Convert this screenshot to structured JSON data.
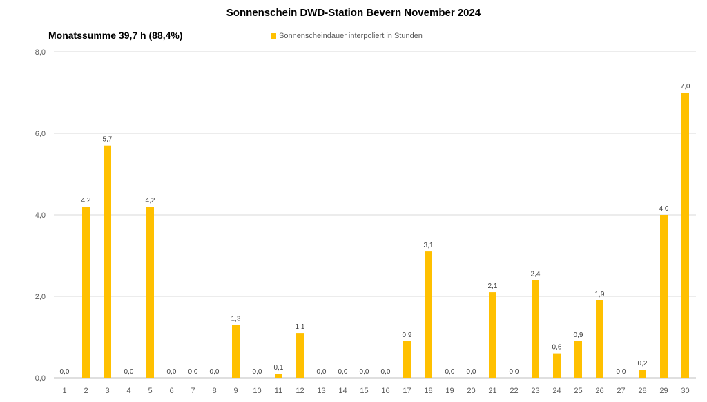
{
  "chart_data": {
    "type": "bar",
    "title": "Sonnenschein  DWD-Station  Bevern November 2024",
    "annotation": "Monatssumme 39,7 h (88,4%)",
    "legend": [
      "Sonnenscheindauer interpoliert in Stunden"
    ],
    "legend_position": "top-center",
    "categories": [
      "1",
      "2",
      "3",
      "4",
      "5",
      "6",
      "7",
      "8",
      "9",
      "10",
      "11",
      "12",
      "13",
      "14",
      "15",
      "16",
      "17",
      "18",
      "19",
      "20",
      "21",
      "22",
      "23",
      "24",
      "25",
      "26",
      "27",
      "28",
      "29",
      "30"
    ],
    "values": [
      0.0,
      4.2,
      5.7,
      0.0,
      4.2,
      0.0,
      0.0,
      0.0,
      1.3,
      0.0,
      0.1,
      1.1,
      0.0,
      0.0,
      0.0,
      0.0,
      0.9,
      3.1,
      0.0,
      0.0,
      2.1,
      0.0,
      2.4,
      0.6,
      0.9,
      1.9,
      0.0,
      0.2,
      4.0,
      7.0
    ],
    "yticks": [
      "0,0",
      "2,0",
      "4,0",
      "6,0",
      "8,0"
    ],
    "ylim": [
      0,
      8
    ],
    "grid": true,
    "xlabel": "",
    "ylabel": "",
    "bar_color": "#FFC000"
  }
}
